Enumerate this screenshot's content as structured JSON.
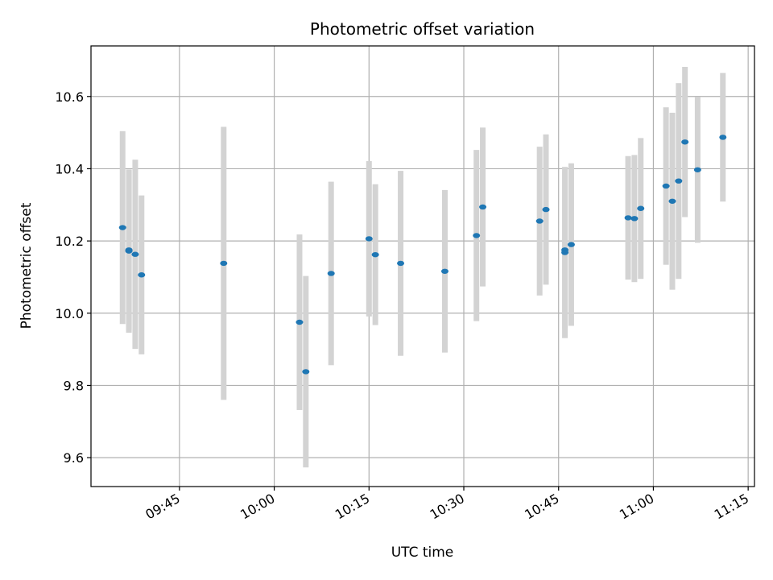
{
  "chart_data": {
    "type": "scatter",
    "title": "Photometric offset variation",
    "xlabel": "UTC time",
    "ylabel": "Photometric offset",
    "x_unit": "minutes",
    "xlim": [
      "09:31",
      "11:16"
    ],
    "ylim": [
      9.52,
      10.74
    ],
    "x_ticks": [
      "09:45",
      "10:00",
      "10:15",
      "10:30",
      "10:45",
      "11:00",
      "11:15"
    ],
    "y_ticks": [
      "9.6",
      "9.8",
      "10.0",
      "10.2",
      "10.4",
      "10.6"
    ],
    "grid": true,
    "marker_color": "#1f77b4",
    "errorbar_color": "#d3d3d3",
    "points": [
      {
        "x": "09:36",
        "y": 10.237,
        "err": 0.267
      },
      {
        "x": "09:37",
        "y": 10.172,
        "err": 0.226
      },
      {
        "x": "09:37",
        "y": 10.175,
        "err": 0.22
      },
      {
        "x": "09:38",
        "y": 10.163,
        "err": 0.262
      },
      {
        "x": "09:39",
        "y": 10.106,
        "err": 0.22
      },
      {
        "x": "09:52",
        "y": 10.138,
        "err": 0.378
      },
      {
        "x": "10:04",
        "y": 9.975,
        "err": 0.243
      },
      {
        "x": "10:05",
        "y": 9.838,
        "err": 0.265
      },
      {
        "x": "10:09",
        "y": 10.11,
        "err": 0.254
      },
      {
        "x": "10:15",
        "y": 10.206,
        "err": 0.215
      },
      {
        "x": "10:16",
        "y": 10.162,
        "err": 0.195
      },
      {
        "x": "10:20",
        "y": 10.138,
        "err": 0.256
      },
      {
        "x": "10:27",
        "y": 10.116,
        "err": 0.225
      },
      {
        "x": "10:32",
        "y": 10.215,
        "err": 0.237
      },
      {
        "x": "10:33",
        "y": 10.294,
        "err": 0.22
      },
      {
        "x": "10:42",
        "y": 10.255,
        "err": 0.206
      },
      {
        "x": "10:43",
        "y": 10.287,
        "err": 0.208
      },
      {
        "x": "10:46",
        "y": 10.175,
        "err": 0.218
      },
      {
        "x": "10:46",
        "y": 10.168,
        "err": 0.237
      },
      {
        "x": "10:47",
        "y": 10.19,
        "err": 0.225
      },
      {
        "x": "10:56",
        "y": 10.264,
        "err": 0.171
      },
      {
        "x": "10:57",
        "y": 10.262,
        "err": 0.176
      },
      {
        "x": "10:58",
        "y": 10.29,
        "err": 0.195
      },
      {
        "x": "11:02",
        "y": 10.352,
        "err": 0.218
      },
      {
        "x": "11:03",
        "y": 10.31,
        "err": 0.245
      },
      {
        "x": "11:04",
        "y": 10.366,
        "err": 0.271
      },
      {
        "x": "11:05",
        "y": 10.474,
        "err": 0.208
      },
      {
        "x": "11:07",
        "y": 10.397,
        "err": 0.202
      },
      {
        "x": "11:11",
        "y": 10.487,
        "err": 0.178
      }
    ]
  }
}
